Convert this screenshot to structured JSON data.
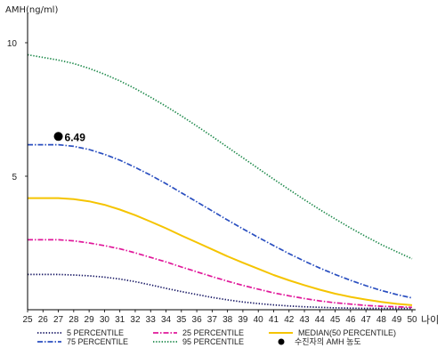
{
  "chart_data": {
    "type": "line",
    "ylabel": "AMH(ng/ml)",
    "xlabel": "나이",
    "xlim": [
      25,
      50
    ],
    "ylim": [
      0,
      11
    ],
    "yticks": [
      5,
      10
    ],
    "x": [
      25,
      26,
      27,
      28,
      29,
      30,
      31,
      32,
      33,
      34,
      35,
      36,
      37,
      38,
      39,
      40,
      41,
      42,
      43,
      44,
      45,
      46,
      47,
      48,
      49,
      50
    ],
    "grid": false,
    "legend_position": "bottom",
    "series": [
      {
        "name": "5 PERCENTILE",
        "color": "#1a1a66",
        "style": "dotted",
        "values": [
          1.32,
          1.32,
          1.32,
          1.3,
          1.27,
          1.22,
          1.15,
          1.05,
          0.93,
          0.8,
          0.68,
          0.57,
          0.46,
          0.37,
          0.29,
          0.23,
          0.18,
          0.14,
          0.11,
          0.09,
          0.07,
          0.06,
          0.05,
          0.05,
          0.05,
          0.05
        ]
      },
      {
        "name": "25 PERCENTILE",
        "color": "#e0179a",
        "style": "dashdot",
        "values": [
          2.62,
          2.62,
          2.62,
          2.58,
          2.5,
          2.4,
          2.28,
          2.13,
          1.96,
          1.79,
          1.6,
          1.42,
          1.24,
          1.07,
          0.91,
          0.77,
          0.63,
          0.52,
          0.42,
          0.33,
          0.26,
          0.21,
          0.16,
          0.13,
          0.11,
          0.09
        ]
      },
      {
        "name": "MEDIAN(50 PERCENTILE)",
        "color": "#f5c400",
        "style": "solid",
        "values": [
          4.18,
          4.18,
          4.18,
          4.14,
          4.06,
          3.93,
          3.75,
          3.54,
          3.3,
          3.05,
          2.78,
          2.52,
          2.26,
          2.0,
          1.76,
          1.53,
          1.3,
          1.1,
          0.92,
          0.75,
          0.6,
          0.48,
          0.38,
          0.29,
          0.22,
          0.17
        ]
      },
      {
        "name": "75 PERCENTILE",
        "color": "#2a4fc0",
        "style": "dashdot",
        "values": [
          6.18,
          6.18,
          6.18,
          6.12,
          6.0,
          5.82,
          5.6,
          5.33,
          5.04,
          4.72,
          4.38,
          4.04,
          3.7,
          3.36,
          3.03,
          2.71,
          2.4,
          2.1,
          1.82,
          1.56,
          1.32,
          1.1,
          0.9,
          0.72,
          0.57,
          0.44
        ]
      },
      {
        "name": "95 PERCENTILE",
        "color": "#1f8a4c",
        "style": "dotted",
        "values": [
          9.55,
          9.45,
          9.35,
          9.22,
          9.04,
          8.82,
          8.57,
          8.28,
          7.96,
          7.62,
          7.26,
          6.88,
          6.49,
          6.09,
          5.69,
          5.29,
          4.89,
          4.5,
          4.12,
          3.75,
          3.4,
          3.06,
          2.74,
          2.44,
          2.17,
          1.91
        ]
      }
    ],
    "patient": {
      "legend_label": "수진자의 AMH 농도",
      "age": 27,
      "value": 6.49,
      "label": "6.49",
      "color": "#000000"
    }
  }
}
